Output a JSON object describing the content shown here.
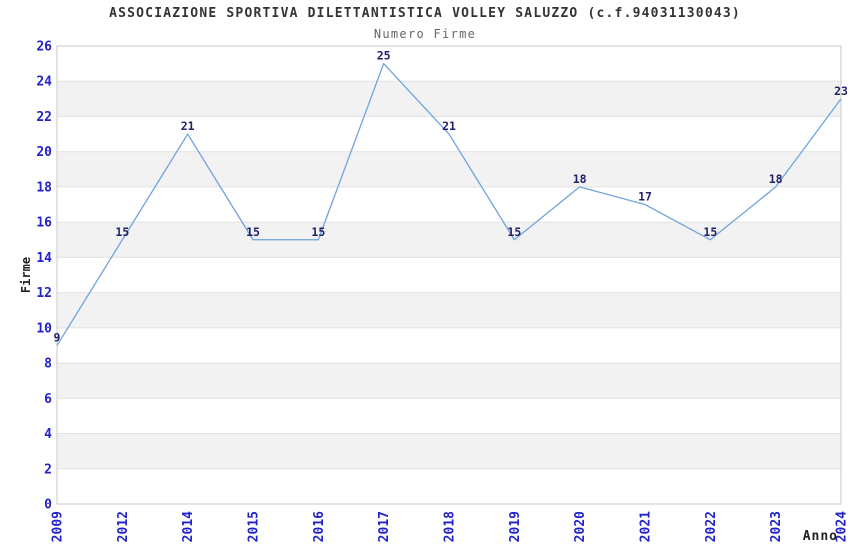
{
  "chart_data": {
    "type": "line",
    "title": "ASSOCIAZIONE SPORTIVA DILETTANTISTICA VOLLEY SALUZZO (c.f.94031130043)",
    "subtitle": "Numero Firme",
    "xlabel": "Anno",
    "ylabel": "Firme",
    "categories": [
      "2009",
      "2012",
      "2014",
      "2015",
      "2016",
      "2017",
      "2018",
      "2019",
      "2020",
      "2021",
      "2022",
      "2023",
      "2024"
    ],
    "values": [
      9,
      15,
      21,
      15,
      15,
      25,
      21,
      15,
      18,
      17,
      15,
      18,
      23
    ],
    "ylim": [
      0,
      26
    ],
    "ytick_step": 2,
    "yticks": [
      0,
      2,
      4,
      6,
      8,
      10,
      12,
      14,
      16,
      18,
      20,
      22,
      24,
      26
    ],
    "grid": true,
    "alternating_bands": true,
    "legend": "none",
    "x_tick_rotation_deg": -90,
    "colors": {
      "line": "#6fa3dc",
      "tick_label": "#2222cc",
      "data_label": "#22226a",
      "band": "#f2f2f2",
      "gridline": "#e2e2e2",
      "plot_border": "#c9c9c9",
      "title": "#333333",
      "subtitle": "#666666",
      "axis_label": "#222222",
      "plot_background": "#ffffff"
    }
  }
}
